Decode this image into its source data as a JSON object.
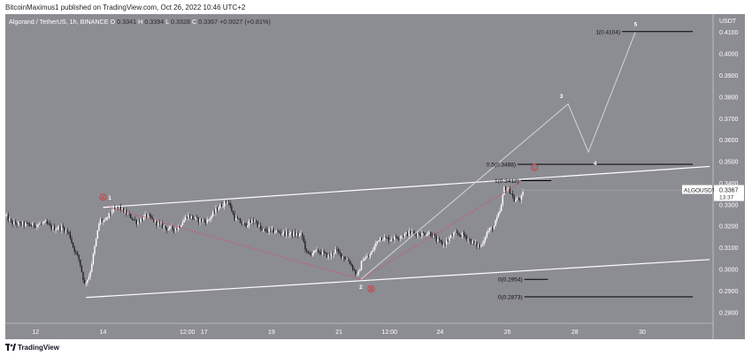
{
  "header": {
    "publisher_line": "BitcoinMaximus1 published on TradingView.com, Oct 26, 2022 10:46 UTC+2"
  },
  "chart_data": {
    "type": "candlestick",
    "ohlc_line": {
      "symbol": "Algorand / TetherUS, 1h, BINANCE",
      "o_label": "O",
      "o": "0.3341",
      "h_label": "H",
      "h": "0.3394",
      "l_label": "L",
      "l": "0.3328",
      "c_label": "C",
      "c": "0.3367",
      "change": "+0.0027 (+0.81%)"
    },
    "y_axis": {
      "unit": "USDT",
      "range": [
        0.275,
        0.4185
      ],
      "ticks": [
        "0.4100",
        "0.4000",
        "0.3900",
        "0.3800",
        "0.3700",
        "0.3600",
        "0.3500",
        "0.3400",
        "0.3300",
        "0.3200",
        "0.3100",
        "0.3000",
        "0.2900",
        "0.2800"
      ]
    },
    "x_axis": {
      "range": [
        11.1,
        32.1
      ],
      "ticks": [
        {
          "label": "12",
          "x": 12
        },
        {
          "label": "14",
          "x": 14
        },
        {
          "label": "12:00",
          "x": 16.5
        },
        {
          "label": "17",
          "x": 17
        },
        {
          "label": "19",
          "x": 19
        },
        {
          "label": "21",
          "x": 21
        },
        {
          "label": "12:00",
          "x": 22.5
        },
        {
          "label": "24",
          "x": 24
        },
        {
          "label": "26",
          "x": 26
        },
        {
          "label": "28",
          "x": 28
        },
        {
          "label": "30",
          "x": 30
        }
      ]
    },
    "price_path": [
      [
        11.1,
        0.325
      ],
      [
        11.3,
        0.3215
      ],
      [
        11.6,
        0.321
      ],
      [
        11.9,
        0.3205
      ],
      [
        12.3,
        0.3215
      ],
      [
        12.5,
        0.319
      ],
      [
        12.8,
        0.3195
      ],
      [
        13.0,
        0.3165
      ],
      [
        13.1,
        0.311
      ],
      [
        13.3,
        0.304
      ],
      [
        13.45,
        0.293
      ],
      [
        13.6,
        0.2975
      ],
      [
        13.75,
        0.31
      ],
      [
        13.9,
        0.323
      ],
      [
        14.05,
        0.322
      ],
      [
        14.25,
        0.327
      ],
      [
        14.45,
        0.329
      ],
      [
        14.7,
        0.326
      ],
      [
        15.0,
        0.322
      ],
      [
        15.3,
        0.325
      ],
      [
        15.6,
        0.3215
      ],
      [
        15.9,
        0.319
      ],
      [
        16.2,
        0.319
      ],
      [
        16.5,
        0.325
      ],
      [
        16.8,
        0.323
      ],
      [
        17.1,
        0.3225
      ],
      [
        17.4,
        0.3285
      ],
      [
        17.7,
        0.332
      ],
      [
        17.9,
        0.324
      ],
      [
        18.2,
        0.3205
      ],
      [
        18.5,
        0.323
      ],
      [
        18.7,
        0.318
      ],
      [
        19.0,
        0.318
      ],
      [
        19.3,
        0.317
      ],
      [
        19.6,
        0.3165
      ],
      [
        19.9,
        0.316
      ],
      [
        20.05,
        0.307
      ],
      [
        20.4,
        0.3085
      ],
      [
        20.7,
        0.306
      ],
      [
        20.9,
        0.309
      ],
      [
        21.1,
        0.306
      ],
      [
        21.3,
        0.304
      ],
      [
        21.55,
        0.2965
      ],
      [
        21.7,
        0.305
      ],
      [
        21.9,
        0.306
      ],
      [
        22.2,
        0.315
      ],
      [
        22.5,
        0.314
      ],
      [
        22.8,
        0.3155
      ],
      [
        23.1,
        0.317
      ],
      [
        23.4,
        0.3165
      ],
      [
        23.7,
        0.317
      ],
      [
        23.9,
        0.3135
      ],
      [
        24.1,
        0.3115
      ],
      [
        24.4,
        0.3165
      ],
      [
        24.7,
        0.316
      ],
      [
        25.0,
        0.312
      ],
      [
        25.2,
        0.3105
      ],
      [
        25.4,
        0.3175
      ],
      [
        25.6,
        0.32
      ],
      [
        25.8,
        0.328
      ],
      [
        25.9,
        0.338
      ],
      [
        26.1,
        0.336
      ],
      [
        26.2,
        0.332
      ],
      [
        26.4,
        0.333
      ],
      [
        26.5,
        0.3367
      ]
    ],
    "current_price": {
      "label": "ALGOUSDT",
      "value": "0.3367",
      "countdown": "13:37"
    },
    "channel": {
      "upper": [
        [
          14.0,
          0.3288
        ],
        [
          32.0,
          0.3478
        ]
      ],
      "lower": [
        [
          13.5,
          0.287
        ],
        [
          32.0,
          0.3046
        ]
      ]
    },
    "corrective_path": [
      [
        14.2,
        0.3288
      ],
      [
        21.65,
        0.2954
      ],
      [
        26.4,
        0.3405
      ]
    ],
    "impulse_projection": [
      [
        21.65,
        0.2954
      ],
      [
        27.8,
        0.3768
      ],
      [
        28.4,
        0.3545
      ],
      [
        29.8,
        0.4104
      ]
    ],
    "fib_levels": [
      {
        "label": "1(0.4104)",
        "value": 0.4104,
        "x_start": 29.4,
        "x_end": 31.5
      },
      {
        "label": "0.5(0.3488)",
        "value": 0.3488,
        "x_start": 26.3,
        "x_end": 31.5
      },
      {
        "label": "1(0.3412)",
        "value": 0.3412,
        "x_start": 26.4,
        "x_end": 27.3
      },
      {
        "label": "0(0.2954)",
        "value": 0.2954,
        "x_start": 26.5,
        "x_end": 27.2
      },
      {
        "label": "0(0.2873)",
        "value": 0.2873,
        "x_start": 26.5,
        "x_end": 31.5
      }
    ],
    "wave_labels_red": [
      {
        "label": "A",
        "x": 14.0,
        "y": 0.3335
      },
      {
        "label": "B",
        "x": 21.95,
        "y": 0.291
      },
      {
        "label": "C",
        "x": 26.8,
        "y": 0.3474
      }
    ],
    "wave_labels_white": [
      {
        "label": "1",
        "x": 14.2,
        "y": 0.3335
      },
      {
        "label": "2",
        "x": 21.65,
        "y": 0.292
      },
      {
        "label": "3",
        "x": 27.6,
        "y": 0.3806
      },
      {
        "label": "4",
        "x": 28.6,
        "y": 0.3495
      },
      {
        "label": "5",
        "x": 29.8,
        "y": 0.414
      }
    ],
    "colors": {
      "background": "#8c8c93",
      "candle_up": "#ffffff",
      "candle_down": "#222222",
      "channel": "#ffffff",
      "corrective": "#c95a6a",
      "projection": "#d4d4d8",
      "fib_line": "#000000",
      "wave_red": "#d23a3a"
    }
  },
  "footer": {
    "brand": "TradingView"
  }
}
